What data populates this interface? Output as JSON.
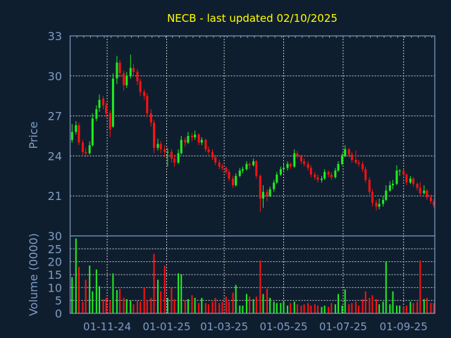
{
  "chart_data": {
    "type": "candlestick",
    "title": "NECB - last updated 02/10/2025",
    "price_panel": {
      "ylabel": "Price",
      "ylim": [
        18,
        33
      ],
      "yticks": [
        21,
        24,
        27,
        30,
        33
      ]
    },
    "volume_panel": {
      "ylabel": "Volume (0000)",
      "ylim": [
        0,
        30
      ],
      "yticks": [
        0,
        5,
        10,
        15,
        20,
        25,
        30
      ]
    },
    "xlim": [
      "2024-09-24",
      "2025-10-03"
    ],
    "xticks": [
      {
        "date": "2024-11-01",
        "label": "01-11-24"
      },
      {
        "date": "2025-01-01",
        "label": "01-01-25"
      },
      {
        "date": "2025-03-01",
        "label": "01-03-25"
      },
      {
        "date": "2025-05-01",
        "label": "01-05-25"
      },
      {
        "date": "2025-07-01",
        "label": "01-07-25"
      },
      {
        "date": "2025-09-01",
        "label": "01-09-25"
      }
    ],
    "grid": true,
    "colors": {
      "up": "#22ee22",
      "down": "#ff1111",
      "background": "#0f1e2e",
      "axis": "#7f9cc4",
      "grid": "#c8c8c8",
      "title": "#ffff00"
    },
    "candle_fields": [
      "date",
      "open",
      "high",
      "low",
      "close",
      "volume"
    ],
    "candles": [
      [
        "2024-09-26",
        25.2,
        26.4,
        25.0,
        25.8,
        14
      ],
      [
        "2024-09-30",
        25.8,
        26.6,
        25.6,
        26.3,
        29
      ],
      [
        "2024-10-03",
        26.3,
        26.5,
        24.8,
        25.0,
        18
      ],
      [
        "2024-10-07",
        25.0,
        25.2,
        24.1,
        24.3,
        4.5
      ],
      [
        "2024-10-10",
        24.3,
        24.6,
        23.9,
        24.2,
        13
      ],
      [
        "2024-10-14",
        24.2,
        25.1,
        24.1,
        24.8,
        18.5
      ],
      [
        "2024-10-17",
        24.8,
        27.2,
        24.7,
        26.8,
        8.5
      ],
      [
        "2024-10-21",
        26.8,
        27.8,
        26.6,
        27.5,
        17
      ],
      [
        "2024-10-24",
        27.6,
        28.6,
        27.3,
        28.2,
        10.5
      ],
      [
        "2024-10-28",
        28.3,
        28.5,
        27.5,
        27.8,
        5.5
      ],
      [
        "2024-10-31",
        27.8,
        28.0,
        26.9,
        27.2,
        6
      ],
      [
        "2024-11-04",
        27.2,
        27.4,
        25.4,
        26.0,
        5
      ],
      [
        "2024-11-07",
        26.2,
        30.2,
        26.1,
        29.8,
        15.5
      ],
      [
        "2024-11-11",
        29.8,
        31.5,
        29.4,
        31.0,
        9
      ],
      [
        "2024-11-14",
        31.0,
        31.2,
        29.9,
        30.2,
        9.5
      ],
      [
        "2024-11-18",
        30.2,
        30.4,
        28.9,
        29.3,
        6
      ],
      [
        "2024-11-21",
        29.3,
        30.3,
        29.1,
        30.0,
        5.5
      ],
      [
        "2024-11-25",
        30.0,
        31.6,
        29.8,
        30.6,
        5
      ],
      [
        "2024-11-28",
        30.6,
        30.9,
        30.0,
        30.3,
        3.5
      ],
      [
        "2024-12-02",
        30.3,
        30.5,
        29.3,
        29.6,
        5
      ],
      [
        "2024-12-05",
        29.6,
        29.8,
        28.5,
        28.8,
        4.5
      ],
      [
        "2024-12-09",
        28.8,
        29.0,
        28.2,
        28.5,
        10
      ],
      [
        "2024-12-12",
        28.5,
        28.7,
        26.9,
        27.2,
        5
      ],
      [
        "2024-12-16",
        27.2,
        27.5,
        26.2,
        26.5,
        6
      ],
      [
        "2024-12-19",
        26.5,
        26.7,
        24.2,
        24.6,
        23
      ],
      [
        "2024-12-23",
        24.6,
        25.3,
        24.4,
        24.9,
        13
      ],
      [
        "2024-12-26",
        24.9,
        25.1,
        24.2,
        24.5,
        8.5
      ],
      [
        "2024-12-30",
        24.5,
        24.8,
        23.9,
        24.3,
        18.5
      ],
      [
        "2025-01-02",
        24.3,
        24.6,
        23.2,
        24.3,
        6
      ],
      [
        "2025-01-06",
        24.3,
        24.5,
        23.5,
        23.8,
        10
      ],
      [
        "2025-01-09",
        23.8,
        24.1,
        23.2,
        23.5,
        5.5
      ],
      [
        "2025-01-13",
        23.5,
        24.5,
        23.4,
        24.2,
        15.5
      ],
      [
        "2025-01-16",
        24.2,
        25.5,
        24.1,
        25.2,
        15.2
      ],
      [
        "2025-01-20",
        25.2,
        25.4,
        24.7,
        25.0,
        5
      ],
      [
        "2025-01-23",
        25.0,
        25.8,
        24.9,
        25.5,
        5.5
      ],
      [
        "2025-01-27",
        25.5,
        25.7,
        25.1,
        25.4,
        7
      ],
      [
        "2025-01-30",
        25.4,
        25.9,
        25.2,
        25.6,
        6
      ],
      [
        "2025-02-03",
        25.6,
        25.7,
        24.8,
        25.0,
        4
      ],
      [
        "2025-02-06",
        25.0,
        25.4,
        24.8,
        25.2,
        6
      ],
      [
        "2025-02-10",
        25.2,
        25.3,
        24.3,
        24.5,
        4
      ],
      [
        "2025-02-13",
        24.5,
        24.7,
        24.1,
        24.3,
        3.5
      ],
      [
        "2025-02-17",
        24.3,
        24.5,
        23.7,
        23.9,
        4.5
      ],
      [
        "2025-02-20",
        23.9,
        24.1,
        23.3,
        23.5,
        6
      ],
      [
        "2025-02-24",
        23.5,
        23.7,
        23.0,
        23.2,
        4
      ],
      [
        "2025-02-27",
        23.2,
        23.4,
        22.9,
        23.1,
        4.5
      ],
      [
        "2025-03-03",
        23.1,
        23.2,
        22.6,
        22.8,
        6.5
      ],
      [
        "2025-03-06",
        22.8,
        23.0,
        22.1,
        22.3,
        4.5
      ],
      [
        "2025-03-10",
        22.3,
        22.5,
        21.6,
        21.8,
        8
      ],
      [
        "2025-03-13",
        21.8,
        22.7,
        21.7,
        22.5,
        11
      ],
      [
        "2025-03-17",
        22.5,
        23.1,
        22.4,
        22.9,
        3
      ],
      [
        "2025-03-20",
        22.9,
        23.2,
        22.7,
        23.0,
        3
      ],
      [
        "2025-03-24",
        23.0,
        23.6,
        22.9,
        23.4,
        7.5
      ],
      [
        "2025-03-27",
        23.4,
        23.5,
        23.0,
        23.3,
        6.5
      ],
      [
        "2025-03-31",
        23.3,
        23.8,
        23.2,
        23.6,
        5.5
      ],
      [
        "2025-04-03",
        23.6,
        23.7,
        22.3,
        22.5,
        6.5
      ],
      [
        "2025-04-07",
        22.5,
        22.6,
        19.8,
        20.8,
        20.5
      ],
      [
        "2025-04-10",
        20.8,
        21.8,
        20.1,
        21.3,
        7.5
      ],
      [
        "2025-04-14",
        21.3,
        21.5,
        20.6,
        21.0,
        9.5
      ],
      [
        "2025-04-17",
        21.0,
        21.7,
        20.9,
        21.5,
        6
      ],
      [
        "2025-04-21",
        21.5,
        22.2,
        21.3,
        22.0,
        4.5
      ],
      [
        "2025-04-24",
        22.0,
        22.8,
        21.9,
        22.6,
        4
      ],
      [
        "2025-04-28",
        22.6,
        23.2,
        22.5,
        23.0,
        4
      ],
      [
        "2025-05-01",
        23.0,
        23.4,
        22.8,
        23.1,
        4.5
      ],
      [
        "2025-05-05",
        23.1,
        23.6,
        22.9,
        23.4,
        3
      ],
      [
        "2025-05-08",
        23.4,
        23.5,
        23.0,
        23.2,
        4
      ],
      [
        "2025-05-12",
        23.2,
        24.5,
        23.1,
        24.2,
        4.5
      ],
      [
        "2025-05-15",
        24.2,
        24.4,
        23.8,
        24.0,
        3.5
      ],
      [
        "2025-05-19",
        24.0,
        24.1,
        23.4,
        23.6,
        3
      ],
      [
        "2025-05-22",
        23.6,
        23.8,
        23.2,
        23.4,
        3.5
      ],
      [
        "2025-05-26",
        23.4,
        23.6,
        22.9,
        23.1,
        4
      ],
      [
        "2025-05-29",
        23.1,
        23.3,
        22.4,
        22.6,
        3
      ],
      [
        "2025-06-02",
        22.6,
        22.8,
        22.2,
        22.4,
        3.5
      ],
      [
        "2025-06-05",
        22.4,
        22.6,
        22.0,
        22.2,
        3
      ],
      [
        "2025-06-09",
        22.2,
        22.5,
        22.0,
        22.3,
        2.5
      ],
      [
        "2025-06-12",
        22.3,
        23.0,
        22.2,
        22.8,
        3
      ],
      [
        "2025-06-16",
        22.8,
        22.9,
        22.4,
        22.6,
        2.5
      ],
      [
        "2025-06-19",
        22.6,
        22.8,
        22.2,
        22.4,
        4
      ],
      [
        "2025-06-23",
        22.4,
        23.1,
        22.3,
        22.9,
        3.5
      ],
      [
        "2025-06-26",
        22.9,
        23.6,
        22.8,
        23.4,
        7.5
      ],
      [
        "2025-06-30",
        23.4,
        24.2,
        23.3,
        24.0,
        3
      ],
      [
        "2025-07-03",
        24.0,
        24.8,
        23.9,
        24.5,
        9.3
      ],
      [
        "2025-07-07",
        24.5,
        24.6,
        23.9,
        24.1,
        3.5
      ],
      [
        "2025-07-10",
        24.1,
        24.3,
        23.5,
        23.7,
        4
      ],
      [
        "2025-07-14",
        23.7,
        24.4,
        23.4,
        23.5,
        4.5
      ],
      [
        "2025-07-17",
        23.5,
        23.7,
        23.2,
        23.4,
        3
      ],
      [
        "2025-07-21",
        23.4,
        23.6,
        22.8,
        23.0,
        5.5
      ],
      [
        "2025-07-24",
        23.0,
        23.2,
        22.0,
        22.2,
        8.5
      ],
      [
        "2025-07-28",
        22.2,
        22.4,
        21.1,
        21.3,
        6
      ],
      [
        "2025-07-31",
        21.3,
        21.5,
        20.2,
        20.5,
        7
      ],
      [
        "2025-08-04",
        20.5,
        20.7,
        19.9,
        20.2,
        5.5
      ],
      [
        "2025-08-07",
        20.2,
        20.8,
        20.0,
        20.4,
        3.5
      ],
      [
        "2025-08-11",
        20.4,
        21.0,
        20.2,
        20.7,
        4.5
      ],
      [
        "2025-08-14",
        20.7,
        21.8,
        20.6,
        21.4,
        20
      ],
      [
        "2025-08-18",
        21.4,
        22.1,
        21.3,
        21.8,
        3.5
      ],
      [
        "2025-08-21",
        21.8,
        22.2,
        21.5,
        21.9,
        8.5
      ],
      [
        "2025-08-25",
        21.9,
        23.3,
        21.8,
        22.9,
        3
      ],
      [
        "2025-08-28",
        22.9,
        23.0,
        22.5,
        22.9,
        3
      ],
      [
        "2025-09-01",
        22.9,
        23.0,
        22.4,
        22.6,
        2.5
      ],
      [
        "2025-09-04",
        22.6,
        22.7,
        21.8,
        22.0,
        3
      ],
      [
        "2025-09-08",
        22.0,
        22.5,
        21.9,
        22.3,
        4.5
      ],
      [
        "2025-09-11",
        22.3,
        22.4,
        21.7,
        21.9,
        4
      ],
      [
        "2025-09-15",
        21.9,
        22.0,
        21.4,
        21.6,
        4.5
      ],
      [
        "2025-09-18",
        21.6,
        22.0,
        21.0,
        21.2,
        20.5
      ],
      [
        "2025-09-22",
        21.2,
        21.8,
        21.1,
        21.4,
        5.5
      ],
      [
        "2025-09-25",
        21.4,
        21.5,
        20.7,
        20.9,
        6
      ],
      [
        "2025-09-29",
        20.9,
        21.1,
        20.4,
        20.6,
        4
      ],
      [
        "2025-10-02",
        20.6,
        20.8,
        20.1,
        20.3,
        4
      ]
    ]
  }
}
